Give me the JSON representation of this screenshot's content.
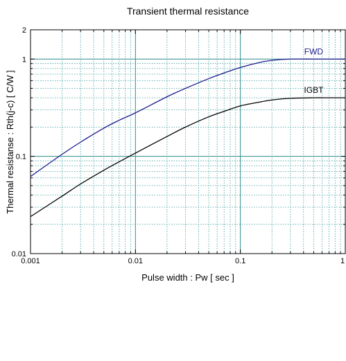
{
  "chart_data": {
    "type": "line",
    "title": "Transient thermal resistance",
    "xlabel": "Pulse width  :  Pw  [ sec ]",
    "ylabel": "Thermal resistanse  :  Rth(j-c)  [ C/W ]",
    "x_scale": "log",
    "y_scale": "log",
    "xlim": [
      0.001,
      1
    ],
    "ylim": [
      0.01,
      2
    ],
    "x_ticks": [
      {
        "value": 0.001,
        "label": "0.001"
      },
      {
        "value": 0.01,
        "label": "0.01"
      },
      {
        "value": 0.1,
        "label": "0.1"
      },
      {
        "value": 1,
        "label": "1"
      }
    ],
    "y_ticks": [
      {
        "value": 0.01,
        "label": "0.01"
      },
      {
        "value": 0.1,
        "label": "0.1"
      },
      {
        "value": 1,
        "label": "1"
      },
      {
        "value": 2,
        "label": "2"
      }
    ],
    "grid": true,
    "series": [
      {
        "name": "FWD",
        "color": "#1a1a8c",
        "x": [
          0.001,
          0.002,
          0.003,
          0.005,
          0.007,
          0.01,
          0.02,
          0.03,
          0.05,
          0.07,
          0.1,
          0.15,
          0.2,
          0.3,
          0.5,
          0.7,
          1
        ],
        "y": [
          0.062,
          0.105,
          0.14,
          0.195,
          0.235,
          0.28,
          0.41,
          0.5,
          0.63,
          0.72,
          0.82,
          0.92,
          0.97,
          1.0,
          1.0,
          1.0,
          1.0
        ]
      },
      {
        "name": "IGBT",
        "color": "#000000",
        "x": [
          0.001,
          0.002,
          0.003,
          0.005,
          0.007,
          0.01,
          0.02,
          0.03,
          0.05,
          0.07,
          0.1,
          0.15,
          0.2,
          0.3,
          0.5,
          0.7,
          1
        ],
        "y": [
          0.024,
          0.039,
          0.052,
          0.072,
          0.088,
          0.108,
          0.16,
          0.2,
          0.255,
          0.29,
          0.33,
          0.36,
          0.38,
          0.395,
          0.4,
          0.4,
          0.4
        ]
      }
    ]
  }
}
